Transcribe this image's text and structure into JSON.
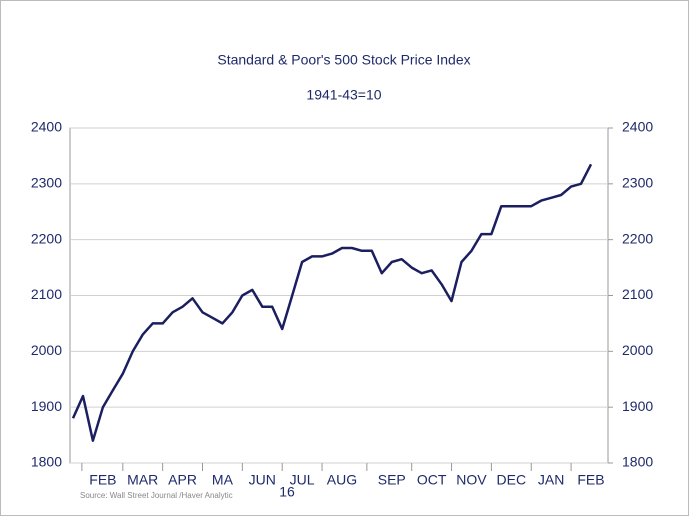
{
  "chart_data": {
    "type": "line",
    "title": "Standard & Poor's 500 Stock Price Index",
    "subtitle": "1941-43=10",
    "year_label": "16",
    "source": "Source: Wall Street Journal /Haver Analytic",
    "categories": [
      null,
      null,
      null,
      "FEB",
      null,
      null,
      null,
      "MAR",
      null,
      null,
      null,
      "APR",
      null,
      null,
      null,
      "MA",
      null,
      null,
      null,
      "JUN",
      null,
      null,
      null,
      "JUL",
      null,
      null,
      null,
      "AUG",
      null,
      null,
      null,
      null,
      "SEP",
      null,
      null,
      null,
      "OCT",
      null,
      null,
      null,
      "NOV",
      null,
      null,
      null,
      "DEC",
      null,
      null,
      null,
      "JAN",
      null,
      null,
      null,
      "FEB"
    ],
    "series": [
      {
        "name": "S&P 500",
        "color": "#1b1f5f",
        "values": [
          1880,
          1920,
          1840,
          1900,
          1930,
          1960,
          2000,
          2030,
          2050,
          2050,
          2070,
          2080,
          2095,
          2070,
          2060,
          2050,
          2070,
          2100,
          2110,
          2080,
          2080,
          2040,
          2100,
          2160,
          2170,
          2170,
          2175,
          2185,
          2185,
          2180,
          2180,
          2140,
          2160,
          2165,
          2150,
          2140,
          2145,
          2120,
          2090,
          2160,
          2180,
          2210,
          2210,
          2260,
          2260,
          2260,
          2260,
          2270,
          2275,
          2280,
          2295,
          2300,
          2335
        ]
      }
    ],
    "ylim": [
      1800,
      2400
    ],
    "yticks": [
      1800,
      1900,
      2000,
      2100,
      2200,
      2300,
      2400
    ],
    "y2lim": [
      1800,
      2400
    ],
    "y2ticks": [
      1800,
      1900,
      2000,
      2100,
      2200,
      2300,
      2400
    ],
    "grid": true
  }
}
